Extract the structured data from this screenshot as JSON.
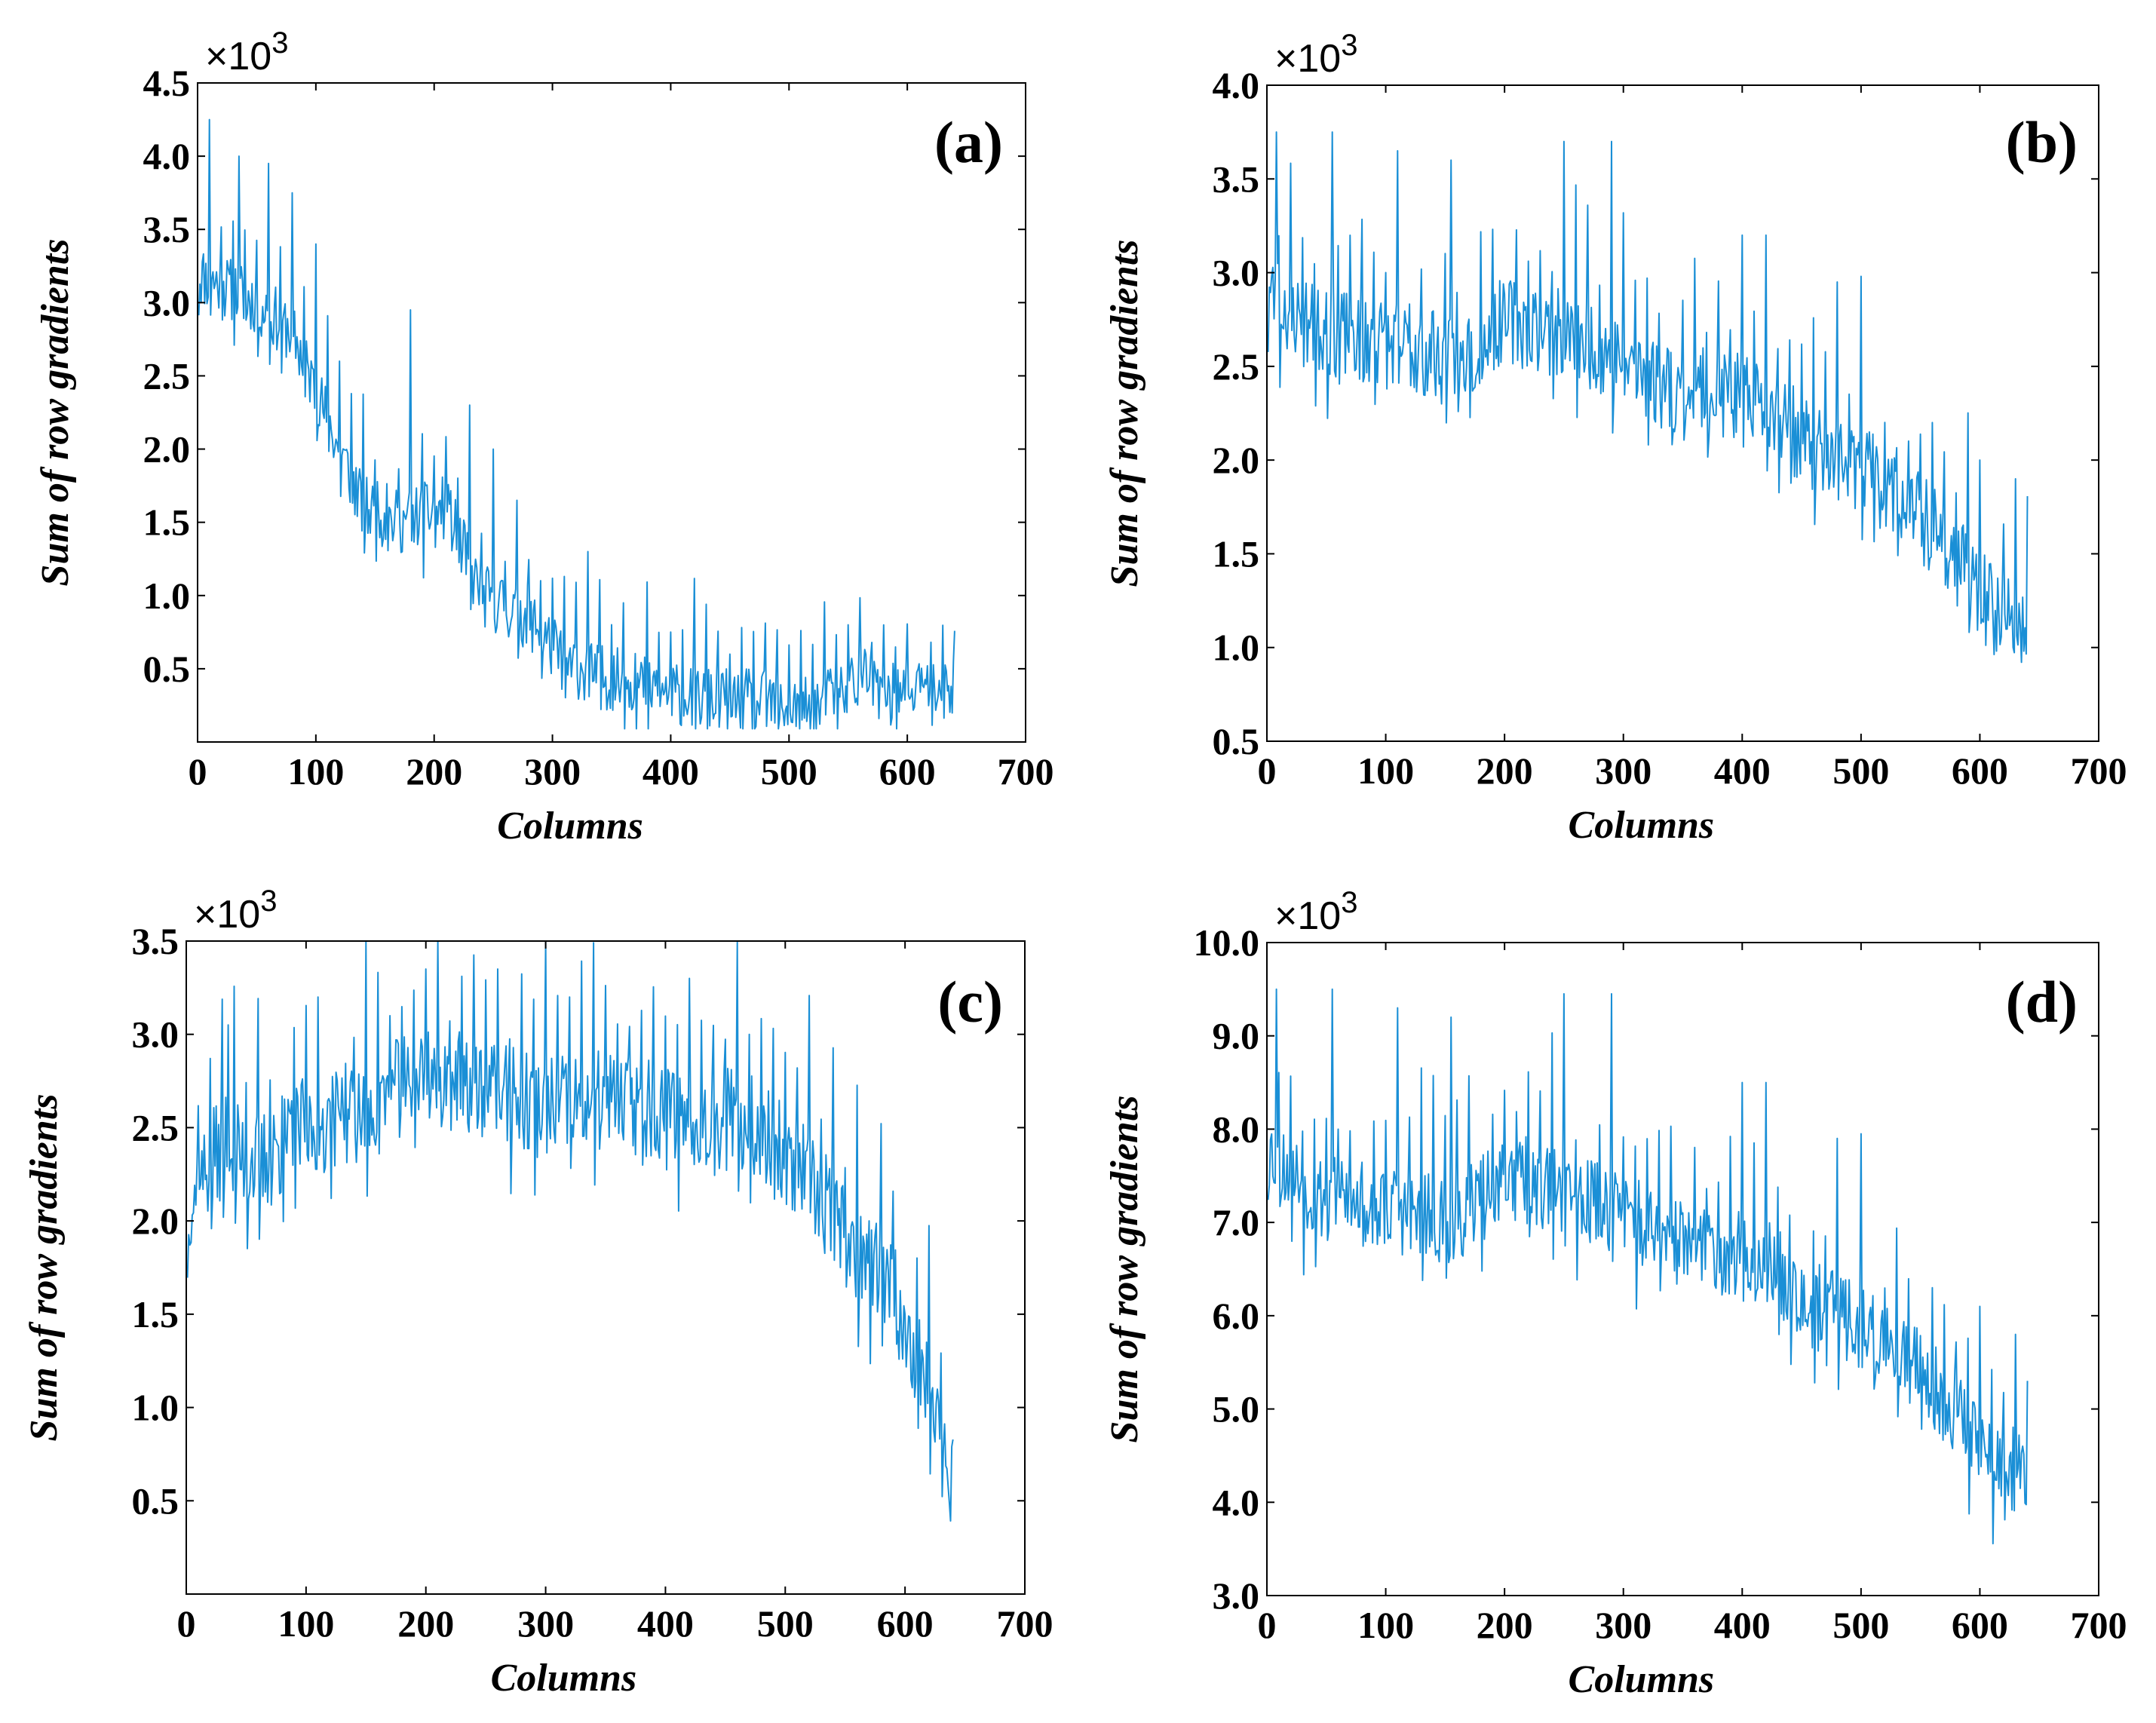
{
  "colors": {
    "line": "#1a8fd6",
    "axis": "#000000",
    "background": "#ffffff"
  },
  "chart_data": [
    {
      "id": "a",
      "type": "line",
      "panel_label": "(a)",
      "multiplier": "×10",
      "multiplier_exp": "3",
      "xlabel": "Columns",
      "ylabel": "Sum of row gradients",
      "xlim": [
        0,
        700
      ],
      "ylim": [
        0,
        4.5
      ],
      "xticks": [
        0,
        100,
        200,
        300,
        400,
        500,
        600,
        700
      ],
      "xtick_labels": [
        "0",
        "100",
        "200",
        "300",
        "400",
        "500",
        "600",
        "700"
      ],
      "yticks": [
        0.5,
        1.0,
        1.5,
        2.0,
        2.5,
        3.0,
        3.5,
        4.0,
        4.5
      ],
      "ytick_labels": [
        "0.5",
        "1.0",
        "1.5",
        "2.0",
        "2.5",
        "3.0",
        "3.5",
        "4.0",
        "4.5"
      ],
      "x_range": [
        1,
        640
      ],
      "trend": [
        [
          0,
          3.2
        ],
        [
          50,
          3.0
        ],
        [
          80,
          2.8
        ],
        [
          120,
          2.0
        ],
        [
          140,
          1.6
        ],
        [
          170,
          1.5
        ],
        [
          210,
          1.6
        ],
        [
          240,
          1.0
        ],
        [
          280,
          0.85
        ],
        [
          310,
          0.55
        ],
        [
          340,
          0.45
        ],
        [
          380,
          0.38
        ],
        [
          420,
          0.3
        ],
        [
          470,
          0.28
        ],
        [
          520,
          0.22
        ],
        [
          550,
          0.4
        ],
        [
          560,
          0.45
        ],
        [
          580,
          0.32
        ],
        [
          640,
          0.38
        ]
      ],
      "spikes": [
        [
          10,
          4.25
        ],
        [
          35,
          4.0
        ],
        [
          60,
          3.95
        ],
        [
          80,
          3.75
        ],
        [
          100,
          3.4
        ],
        [
          120,
          2.6
        ],
        [
          180,
          2.95
        ],
        [
          230,
          2.3
        ],
        [
          250,
          2.0
        ],
        [
          270,
          1.65
        ],
        [
          330,
          1.3
        ],
        [
          360,
          0.95
        ],
        [
          400,
          0.75
        ],
        [
          450,
          0.6
        ],
        [
          550,
          0.8
        ]
      ],
      "noise_amp": 0.22,
      "seed": 11
    },
    {
      "id": "b",
      "type": "line",
      "panel_label": "(b)",
      "multiplier": "×10",
      "multiplier_exp": "3",
      "xlabel": "Columns",
      "ylabel": "Sum of row gradients",
      "xlim": [
        0,
        700
      ],
      "ylim": [
        0.5,
        4.0
      ],
      "xticks": [
        0,
        100,
        200,
        300,
        400,
        500,
        600,
        700
      ],
      "xtick_labels": [
        "0",
        "100",
        "200",
        "300",
        "400",
        "500",
        "600",
        "700"
      ],
      "yticks": [
        0.5,
        1.0,
        1.5,
        2.0,
        2.5,
        3.0,
        3.5,
        4.0
      ],
      "ytick_labels": [
        "0.5",
        "1.0",
        "1.5",
        "2.0",
        "2.5",
        "3.0",
        "3.5",
        "4.0"
      ],
      "x_range": [
        1,
        640
      ],
      "trend": [
        [
          0,
          2.9
        ],
        [
          40,
          2.7
        ],
        [
          120,
          2.6
        ],
        [
          160,
          2.5
        ],
        [
          200,
          2.75
        ],
        [
          260,
          2.65
        ],
        [
          300,
          2.55
        ],
        [
          330,
          2.4
        ],
        [
          380,
          2.35
        ],
        [
          420,
          2.3
        ],
        [
          460,
          2.05
        ],
        [
          500,
          1.95
        ],
        [
          540,
          1.75
        ],
        [
          580,
          1.5
        ],
        [
          610,
          1.2
        ],
        [
          640,
          1.15
        ]
      ],
      "spikes": [
        [
          8,
          3.75
        ],
        [
          55,
          3.75
        ],
        [
          110,
          3.65
        ],
        [
          155,
          3.6
        ],
        [
          250,
          3.7
        ],
        [
          290,
          3.7
        ],
        [
          400,
          3.2
        ],
        [
          420,
          3.2
        ],
        [
          480,
          2.95
        ],
        [
          500,
          2.98
        ],
        [
          560,
          2.2
        ],
        [
          600,
          2.0
        ],
        [
          630,
          1.9
        ]
      ],
      "noise_amp": 0.24,
      "seed": 23
    },
    {
      "id": "c",
      "type": "line",
      "panel_label": "(c)",
      "multiplier": "×10",
      "multiplier_exp": "3",
      "xlabel": "Columns",
      "ylabel": "Sum of row gradients",
      "xlim": [
        0,
        700
      ],
      "ylim": [
        0,
        3.5
      ],
      "xticks": [
        0,
        100,
        200,
        300,
        400,
        500,
        600,
        700
      ],
      "xtick_labels": [
        "0",
        "100",
        "200",
        "300",
        "400",
        "500",
        "600",
        "700"
      ],
      "yticks": [
        0.5,
        1.0,
        1.5,
        2.0,
        2.5,
        3.0,
        3.5
      ],
      "ytick_labels": [
        "0.5",
        "1.0",
        "1.5",
        "2.0",
        "2.5",
        "3.0",
        "3.5"
      ],
      "x_range": [
        1,
        640
      ],
      "trend": [
        [
          0,
          2.1
        ],
        [
          30,
          2.4
        ],
        [
          60,
          2.3
        ],
        [
          100,
          2.5
        ],
        [
          150,
          2.6
        ],
        [
          200,
          2.8
        ],
        [
          250,
          2.7
        ],
        [
          300,
          2.6
        ],
        [
          350,
          2.65
        ],
        [
          400,
          2.6
        ],
        [
          450,
          2.55
        ],
        [
          480,
          2.5
        ],
        [
          520,
          2.2
        ],
        [
          560,
          1.85
        ],
        [
          590,
          1.6
        ],
        [
          610,
          1.3
        ],
        [
          630,
          0.9
        ],
        [
          640,
          0.55
        ]
      ],
      "spikes": [
        [
          35,
          3.05
        ],
        [
          110,
          3.2
        ],
        [
          170,
          3.1
        ],
        [
          200,
          3.35
        ],
        [
          260,
          3.35
        ],
        [
          320,
          3.2
        ],
        [
          420,
          3.3
        ],
        [
          470,
          3.0
        ],
        [
          570,
          2.0
        ],
        [
          600,
          1.5
        ]
      ],
      "noise_amp": 0.28,
      "seed": 37
    },
    {
      "id": "d",
      "type": "line",
      "panel_label": "(d)",
      "multiplier": "×10",
      "multiplier_exp": "3",
      "xlabel": "Columns",
      "ylabel": "Sum of row gradients",
      "xlim": [
        0,
        700
      ],
      "ylim": [
        3.0,
        10.0
      ],
      "xticks": [
        0,
        100,
        200,
        300,
        400,
        500,
        600,
        700
      ],
      "xtick_labels": [
        "0",
        "100",
        "200",
        "300",
        "400",
        "500",
        "600",
        "700"
      ],
      "yticks": [
        3.0,
        4.0,
        5.0,
        6.0,
        7.0,
        8.0,
        9.0,
        10.0
      ],
      "ytick_labels": [
        "3.0",
        "4.0",
        "5.0",
        "6.0",
        "7.0",
        "8.0",
        "9.0",
        "10.0"
      ],
      "x_range": [
        1,
        640
      ],
      "trend": [
        [
          0,
          7.8
        ],
        [
          40,
          7.3
        ],
        [
          120,
          7.1
        ],
        [
          160,
          7.0
        ],
        [
          200,
          7.5
        ],
        [
          260,
          7.3
        ],
        [
          300,
          7.1
        ],
        [
          330,
          6.8
        ],
        [
          380,
          6.7
        ],
        [
          420,
          6.6
        ],
        [
          460,
          6.1
        ],
        [
          500,
          5.9
        ],
        [
          540,
          5.5
        ],
        [
          580,
          5.0
        ],
        [
          610,
          4.4
        ],
        [
          640,
          4.3
        ]
      ],
      "spikes": [
        [
          8,
          9.5
        ],
        [
          55,
          9.5
        ],
        [
          110,
          9.3
        ],
        [
          155,
          9.2
        ],
        [
          250,
          9.45
        ],
        [
          290,
          9.45
        ],
        [
          400,
          8.5
        ],
        [
          420,
          8.5
        ],
        [
          480,
          7.9
        ],
        [
          500,
          7.95
        ],
        [
          560,
          6.3
        ],
        [
          600,
          6.1
        ],
        [
          630,
          5.8
        ]
      ],
      "noise_amp": 0.48,
      "seed": 53
    }
  ]
}
